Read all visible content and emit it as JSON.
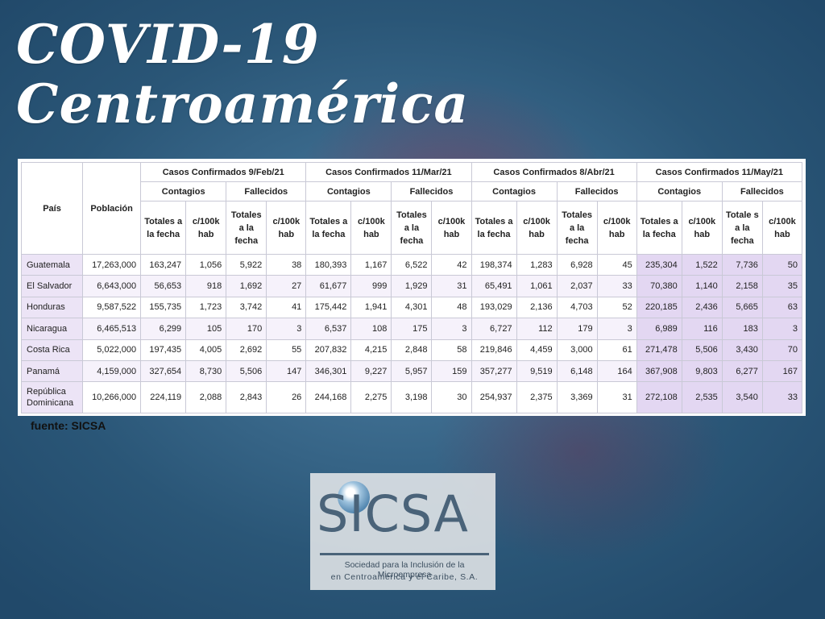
{
  "title": {
    "line1": "COVID-19",
    "line2": "Centroamérica"
  },
  "table": {
    "col_pais": "País",
    "col_poblacion": "Población",
    "periods": [
      "Casos Confirmados 9/Feb/21",
      "Casos Confirmados 11/Mar/21",
      "Casos Confirmados 8/Abr/21",
      "Casos Confirmados 11/May/21"
    ],
    "contagios": "Contagios",
    "fallecidos": "Fallecidos",
    "sub_totales": "Totales a la fecha",
    "sub_totales_last": "Totale s a la fecha",
    "sub_rate": "c/100k hab",
    "rows": [
      {
        "country": "Guatemala",
        "pop": "17,263,000",
        "v": [
          "163,247",
          "1,056",
          "5,922",
          "38",
          "180,393",
          "1,167",
          "6,522",
          "42",
          "198,374",
          "1,283",
          "6,928",
          "45",
          "235,304",
          "1,522",
          "7,736",
          "50"
        ]
      },
      {
        "country": "El Salvador",
        "pop": "6,643,000",
        "v": [
          "56,653",
          "918",
          "1,692",
          "27",
          "61,677",
          "999",
          "1,929",
          "31",
          "65,491",
          "1,061",
          "2,037",
          "33",
          "70,380",
          "1,140",
          "2,158",
          "35"
        ]
      },
      {
        "country": "Honduras",
        "pop": "9,587,522",
        "v": [
          "155,735",
          "1,723",
          "3,742",
          "41",
          "175,442",
          "1,941",
          "4,301",
          "48",
          "193,029",
          "2,136",
          "4,703",
          "52",
          "220,185",
          "2,436",
          "5,665",
          "63"
        ]
      },
      {
        "country": "Nicaragua",
        "pop": "6,465,513",
        "v": [
          "6,299",
          "105",
          "170",
          "3",
          "6,537",
          "108",
          "175",
          "3",
          "6,727",
          "112",
          "179",
          "3",
          "6,989",
          "116",
          "183",
          "3"
        ]
      },
      {
        "country": "Costa Rica",
        "pop": "5,022,000",
        "v": [
          "197,435",
          "4,005",
          "2,692",
          "55",
          "207,832",
          "4,215",
          "2,848",
          "58",
          "219,846",
          "4,459",
          "3,000",
          "61",
          "271,478",
          "5,506",
          "3,430",
          "70"
        ]
      },
      {
        "country": "Panamá",
        "pop": "4,159,000",
        "v": [
          "327,654",
          "8,730",
          "5,506",
          "147",
          "346,301",
          "9,227",
          "5,957",
          "159",
          "357,277",
          "9,519",
          "6,148",
          "164",
          "367,908",
          "9,803",
          "6,277",
          "167"
        ]
      },
      {
        "country": "República Dominicana",
        "pop": "10,266,000",
        "v": [
          "224,119",
          "2,088",
          "2,843",
          "26",
          "244,168",
          "2,275",
          "3,198",
          "30",
          "254,937",
          "2,375",
          "3,369",
          "31",
          "272,108",
          "2,535",
          "3,540",
          "33"
        ]
      }
    ]
  },
  "source": "fuente: SICSA",
  "logo": {
    "name": "SICSA",
    "tagline1": "Sociedad para la Inclusión de la Microempresa",
    "tagline2": "en Centroamérica y el Caribe, S.A."
  }
}
